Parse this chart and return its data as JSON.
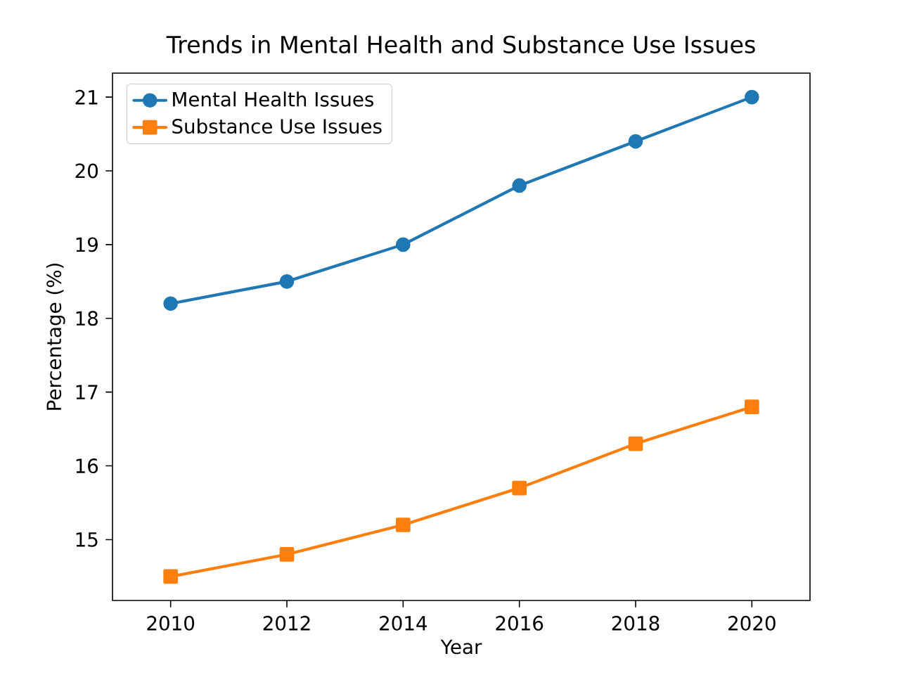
{
  "chart_data": {
    "type": "line",
    "title": "Trends in Mental Health and Substance Use Issues",
    "xlabel": "Year",
    "ylabel": "Percentage (%)",
    "x": [
      2010,
      2012,
      2014,
      2016,
      2018,
      2020
    ],
    "series": [
      {
        "name": "Mental Health Issues",
        "color": "#1f77b4",
        "marker": "circle",
        "values": [
          18.2,
          18.5,
          19.0,
          19.8,
          20.4,
          21.0
        ]
      },
      {
        "name": "Substance Use Issues",
        "color": "#ff7f0e",
        "marker": "square",
        "values": [
          14.5,
          14.8,
          15.2,
          15.7,
          16.3,
          16.8
        ]
      }
    ],
    "xlim": [
      2009,
      2021
    ],
    "ylim": [
      14.175,
      21.325
    ],
    "xticks": [
      2010,
      2012,
      2014,
      2016,
      2018,
      2020
    ],
    "yticks": [
      15,
      16,
      17,
      18,
      19,
      20,
      21
    ],
    "legend": "top left",
    "line_style": "solid"
  }
}
